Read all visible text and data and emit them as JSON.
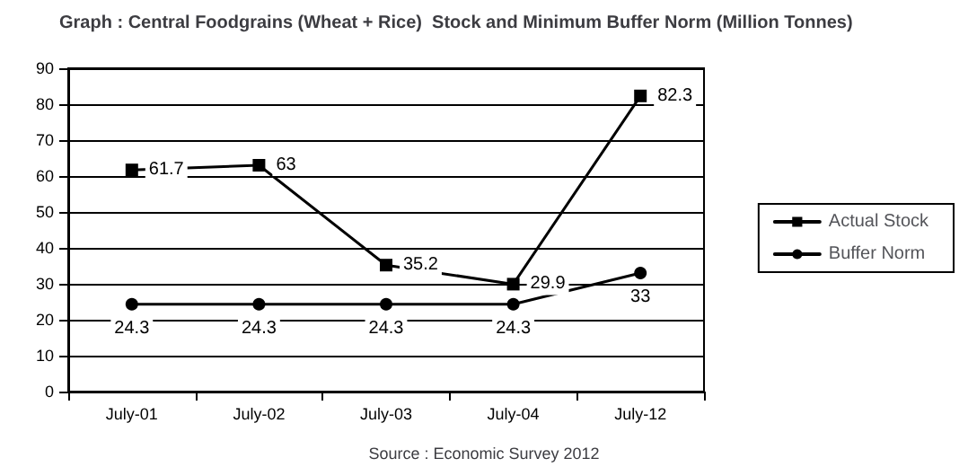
{
  "chart_data": {
    "type": "line",
    "title": "Graph : Central Foodgrains (Wheat + Rice)  Stock and Minimum Buffer Norm (Million Tonnes)",
    "categories": [
      "July-01",
      "July-02",
      "July-03",
      "July-04",
      "July-12"
    ],
    "series": [
      {
        "name": "Actual Stock",
        "color": "#000000",
        "marker": "square",
        "values": [
          61.7,
          63,
          35.2,
          29.9,
          82.3
        ]
      },
      {
        "name": "Buffer Norm",
        "color": "#000000",
        "marker": "circle",
        "values": [
          24.3,
          24.3,
          24.3,
          24.3,
          33
        ]
      }
    ],
    "ylim": [
      0,
      90
    ],
    "yticks": [
      0,
      10,
      20,
      30,
      40,
      50,
      60,
      70,
      80,
      90
    ],
    "grid": "y",
    "legend": "right",
    "data_labels": true,
    "line_style": "solid",
    "annotations": [
      "Source : Economic Survey 2012"
    ]
  }
}
